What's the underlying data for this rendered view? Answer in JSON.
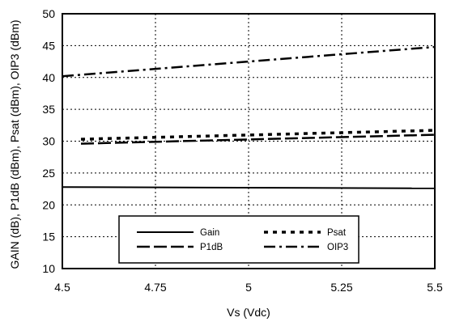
{
  "chart_data": {
    "type": "line",
    "xlabel": "Vs (Vdc)",
    "ylabel": "GAIN (dB), P1dB (dBm), Psat (dBm), OIP3 (dBm)",
    "xlim": [
      4.5,
      5.5
    ],
    "ylim": [
      10,
      50
    ],
    "x_ticks": [
      4.5,
      4.75,
      5,
      5.25,
      5.5
    ],
    "x_tick_labels": [
      "4.5",
      "4.75",
      "5",
      "5.25",
      "5.5"
    ],
    "y_ticks": [
      10,
      15,
      20,
      25,
      30,
      35,
      40,
      45,
      50
    ],
    "y_tick_labels": [
      "10",
      "15",
      "20",
      "25",
      "30",
      "35",
      "40",
      "45",
      "50"
    ],
    "grid": true,
    "legend_position": "bottom-center",
    "x": [
      4.5,
      5.5
    ],
    "series": [
      {
        "name": "Gain",
        "values": [
          22.8,
          22.6
        ],
        "style": "solid",
        "x_start": 4.5
      },
      {
        "name": "P1dB",
        "values": [
          29.6,
          31.0
        ],
        "style": "long-dash",
        "x_start": 4.55
      },
      {
        "name": "Psat",
        "values": [
          30.3,
          31.7
        ],
        "style": "dotted",
        "x_start": 4.55
      },
      {
        "name": "OIP3",
        "values": [
          40.2,
          44.8
        ],
        "style": "dash-dot",
        "x_start": 4.5
      }
    ]
  }
}
